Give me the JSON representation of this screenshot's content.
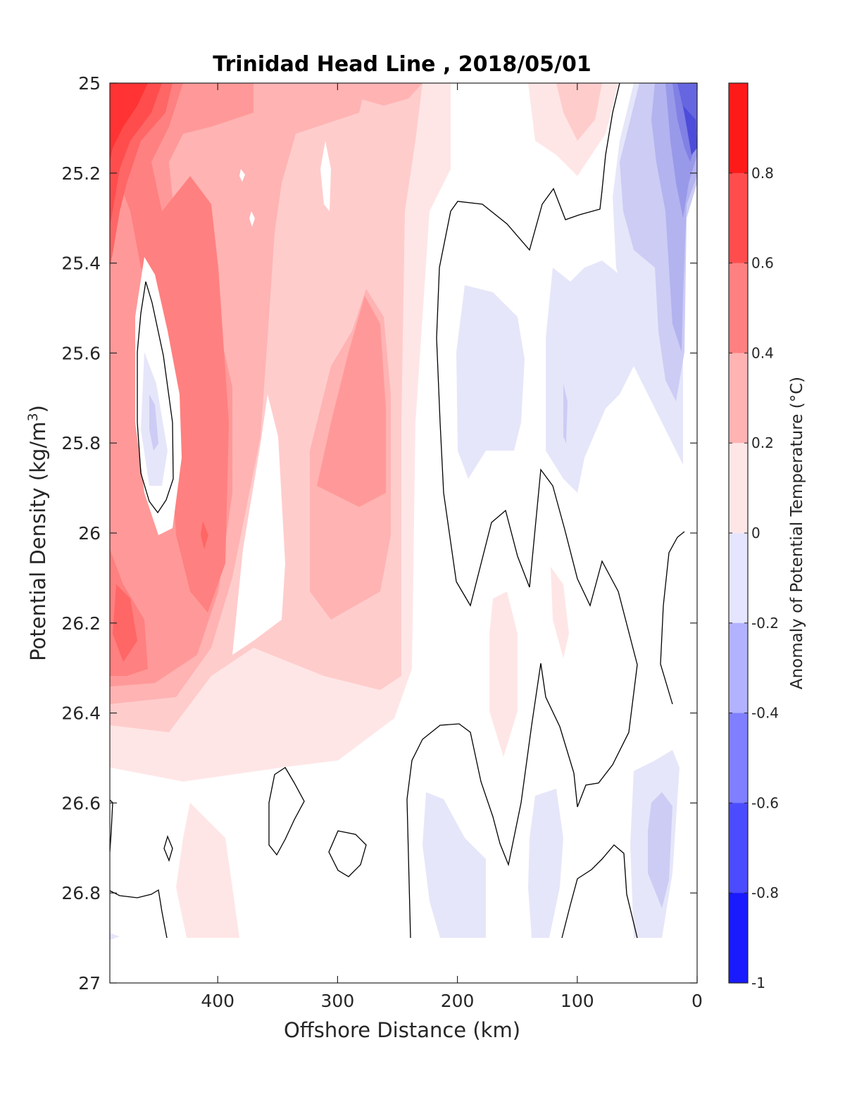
{
  "chart_data": {
    "type": "contour",
    "title": "Trinidad Head Line , 2018/05/01",
    "xlabel": "Offshore Distance (km)",
    "ylabel_main": "Potential Density (kg/m",
    "ylabel_sup": "3",
    "ylabel_close": ")",
    "xlim": [
      490,
      0
    ],
    "ylim": [
      25,
      27
    ],
    "y_reversed": true,
    "x_reversed": true,
    "x_ticks": [
      400,
      300,
      200,
      100,
      0
    ],
    "x_tick_labels": [
      "400",
      "300",
      "200",
      "100",
      "0"
    ],
    "y_ticks": [
      25,
      25.2,
      25.4,
      25.6,
      25.8,
      26,
      26.2,
      26.4,
      26.6,
      26.8,
      27
    ],
    "y_tick_labels": [
      "25",
      "25.2",
      "25.4",
      "25.6",
      "25.8",
      "26",
      "26.2",
      "26.4",
      "26.6",
      "26.8",
      "27"
    ],
    "colorbar": {
      "label": "Anomaly of Potential Temperature (°C)",
      "range": [
        -1,
        1
      ],
      "levels": [
        -1,
        -0.9,
        -0.8,
        -0.7,
        -0.6,
        -0.5,
        -0.4,
        -0.3,
        -0.2,
        -0.1,
        0.1,
        0.2,
        0.3,
        0.4,
        0.5,
        0.6,
        0.7,
        0.8,
        0.9,
        1.0
      ],
      "tick_values": [
        0.8,
        0.6,
        0.4,
        0.2,
        0,
        -0.2,
        -0.4,
        -0.6,
        -0.8,
        -1
      ],
      "tick_labels": [
        "0.8",
        "0.6",
        "0.4",
        "0.2",
        "0",
        "-0.2",
        "-0.4",
        "-0.6",
        "-0.8",
        "-1"
      ],
      "colormap": "blue-white-red",
      "color_neg_max": "#0000ff",
      "color_pos_max": "#ff0000",
      "color_zero": "#ffffff"
    },
    "zero_contour_color": "#000000",
    "grid": false,
    "regions": [
      {
        "name": "warm-offshore-surface",
        "x_range": [
          490,
          430
        ],
        "y_range": [
          25,
          26.45
        ],
        "anomaly": 0.9
      },
      {
        "name": "warm-band-400km",
        "x_range": [
          440,
          370
        ],
        "y_range": [
          25.2,
          26.4
        ],
        "anomaly": 0.5
      },
      {
        "name": "cool-pocket-450km",
        "x_range": [
          465,
          440
        ],
        "y_range": [
          25.45,
          25.95
        ],
        "anomaly": -0.1
      },
      {
        "name": "warm-band-270km",
        "x_range": [
          340,
          230
        ],
        "y_range": [
          25.45,
          26.5
        ],
        "anomaly": 0.4
      },
      {
        "name": "cool-band-150km",
        "x_range": [
          210,
          20
        ],
        "y_range": [
          25.25,
          25.9
        ],
        "anomaly": -0.1
      },
      {
        "name": "cold-nearshore-surface",
        "x_range": [
          90,
          10
        ],
        "y_range": [
          25,
          25.8
        ],
        "anomaly": -0.9
      },
      {
        "name": "cool-deep-nearshore",
        "x_range": [
          200,
          20
        ],
        "y_range": [
          26.5,
          26.9
        ],
        "anomaly": -0.2
      },
      {
        "name": "warm-deep-400km",
        "x_range": [
          420,
          380
        ],
        "y_range": [
          26.6,
          26.9
        ],
        "anomaly": 0.1
      }
    ]
  }
}
